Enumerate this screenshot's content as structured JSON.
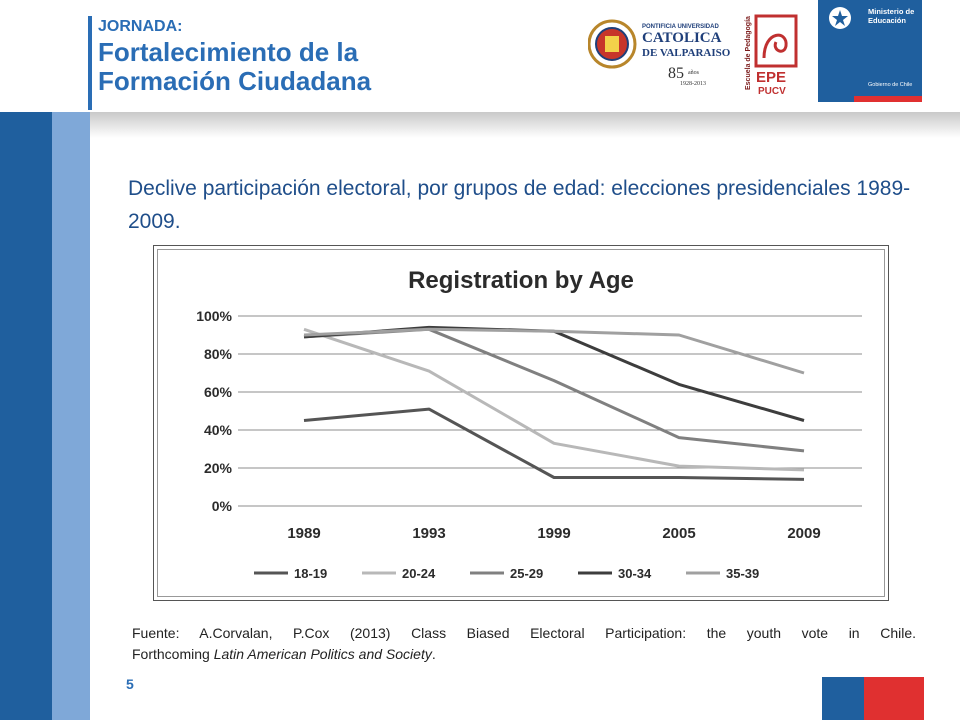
{
  "header": {
    "kicker": "JORNADA:",
    "title_line1": "Fortalecimiento de la",
    "title_line2": "Formación Ciudadana",
    "logo_ucv": {
      "line1": "PONTIFICIA UNIVERSIDAD",
      "line2": "CATOLICA",
      "line3": "DE VALPARAISO",
      "years": "85",
      "years_suffix": "años",
      "years_range": "1928-2013"
    },
    "logo_epe": {
      "vertical": "Escuela de Pedagogía",
      "big": "EPE",
      "small": "PUCV"
    },
    "logo_min": {
      "line1": "Ministerio de",
      "line2": "Educación",
      "footer": "Gobierno de Chile"
    }
  },
  "slide": {
    "title": "Declive participación electoral, por grupos de edad: elecciones presidenciales 1989-2009.",
    "source_line1": "Fuente: A.Corvalan, P.Cox (2013) Class Biased Electoral Participation: the youth vote in Chile.",
    "source_line2_pre": "Forthcoming ",
    "source_line2_italic": "Latin American Politics and Society",
    "source_line2_post": ".",
    "page_number": "5"
  },
  "colors": {
    "brand_blue": "#2a6db5",
    "bar_dark": "#1f5f9e",
    "bar_light": "#7fa8d8",
    "flag_red": "#e03030"
  },
  "chart_data": {
    "type": "line",
    "title": "Registration by Age",
    "categories": [
      "1989",
      "1993",
      "1999",
      "2005",
      "2009"
    ],
    "yticks": [
      "0%",
      "20%",
      "40%",
      "60%",
      "80%",
      "100%"
    ],
    "ylim": [
      0,
      100
    ],
    "grid": true,
    "legend_position": "bottom",
    "series": [
      {
        "name": "18-19",
        "values": [
          45,
          51,
          15,
          15,
          14
        ],
        "color": "#555555"
      },
      {
        "name": "20-24",
        "values": [
          93,
          71,
          33,
          21,
          19
        ],
        "color": "#b8b8b8"
      },
      {
        "name": "25-29",
        "values": [
          89,
          93,
          66,
          36,
          29
        ],
        "color": "#808080"
      },
      {
        "name": "30-34",
        "values": [
          89,
          94,
          92,
          64,
          45
        ],
        "color": "#3d3d3d"
      },
      {
        "name": "35-39",
        "values": [
          90,
          93,
          92,
          90,
          70
        ],
        "color": "#a0a0a0"
      }
    ]
  }
}
